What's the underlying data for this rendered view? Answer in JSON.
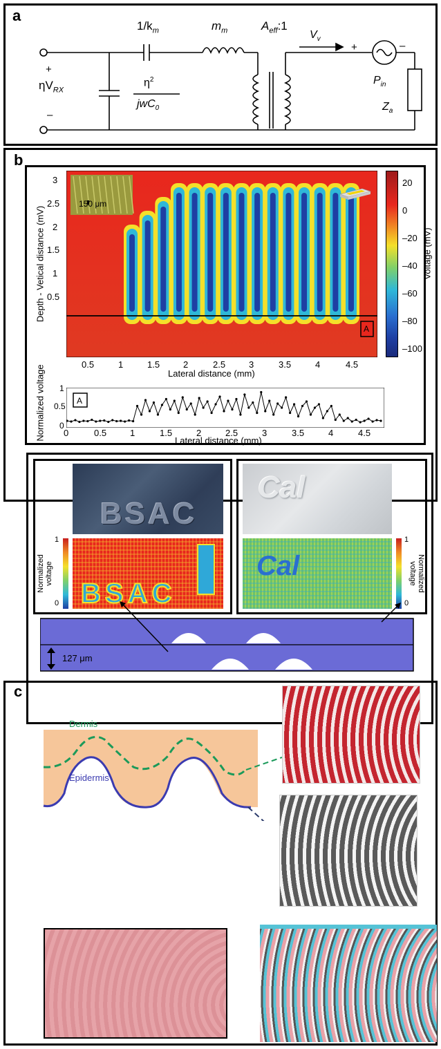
{
  "panel_a": {
    "label": "a",
    "capacitor_label": "1/k",
    "capacitor_sub": "m",
    "inductor_label": "m",
    "inductor_sub": "m",
    "transformer_label": "A",
    "transformer_sub": "eff",
    "transformer_ratio": ":1",
    "source_left": "ηV",
    "source_left_sub": "RX",
    "plus_left": "+",
    "minus_left": "–",
    "shunt_num": "η",
    "shunt_exp": "2",
    "shunt_den": "jwC",
    "shunt_den_sub": "0",
    "vv_label": "V",
    "vv_sub": "v",
    "plus_right": "+",
    "minus_right": "–",
    "pin_label": "P",
    "pin_sub": "in",
    "za_label": "Z",
    "za_sub": "a"
  },
  "panel_b": {
    "label": "b",
    "heatmap": {
      "ylabel": "Depth - Vetical distance (mV)",
      "xlabel": "Lateral distance (mm)",
      "yticks": [
        "3",
        "2.5",
        "2",
        "1.5",
        "1",
        "0.5"
      ],
      "xticks": [
        "0.5",
        "1",
        "1.5",
        "2",
        "2.5",
        "3",
        "3.5",
        "4",
        "4.5"
      ],
      "scalebar": "150 μm",
      "marker": "A",
      "colorbar_label": "Voltage (mV)",
      "colorbar_ticks": [
        "20",
        "0",
        "–20",
        "–40",
        "–60",
        "–80",
        "–100"
      ]
    },
    "lineplot": {
      "ylabel": "Normalized voltage",
      "xlabel": "Lateral distance (mm)",
      "yticks": [
        "1",
        "0.5",
        "0"
      ],
      "xticks": [
        "0",
        "0.5",
        "1",
        "1.5",
        "2",
        "2.5",
        "3",
        "3.5",
        "4",
        "4.5"
      ],
      "marker": "A"
    },
    "sub_left": {
      "photo_text": "BSAC",
      "cb_label": "Normalized voltage",
      "cb_top": "1",
      "cb_bottom": "0"
    },
    "sub_right": {
      "photo_text": "Cal",
      "cb_label": "Normalized voltage",
      "cb_top": "1",
      "cb_bottom": "0"
    },
    "cross_section_label": "127 μm"
  },
  "panel_c": {
    "label": "c",
    "dermis_label": "Dermis",
    "epidermis_label": "Epidermis"
  },
  "colors": {
    "heat_red": "#e8271d",
    "heat_blue": "#1e3fa3",
    "heat_yellow": "#f4e02a",
    "skin": "#f6c69a",
    "dermis_green": "#1b9a5a",
    "epidermis_blue": "#3b3bb0",
    "cross_section_blue": "#6b6bd6",
    "fingerprint_red": "#c4252f",
    "fingerprint_gray": "#555555",
    "fingerprint_pink": "#e9a2a8",
    "fingerprint_cyan": "#56c3d6"
  },
  "chart_data": {
    "type": "line",
    "xlabel": "Lateral distance (mm)",
    "ylabel": "Normalized voltage",
    "xlim": [
      0,
      4.6
    ],
    "ylim": [
      0,
      1
    ],
    "x": [
      0.0,
      0.06,
      0.12,
      0.18,
      0.24,
      0.3,
      0.36,
      0.42,
      0.48,
      0.54,
      0.6,
      0.66,
      0.72,
      0.78,
      0.84,
      0.9,
      0.96,
      1.02,
      1.08,
      1.14,
      1.2,
      1.26,
      1.32,
      1.38,
      1.44,
      1.5,
      1.56,
      1.62,
      1.68,
      1.74,
      1.8,
      1.86,
      1.92,
      1.98,
      2.04,
      2.1,
      2.16,
      2.22,
      2.28,
      2.34,
      2.4,
      2.46,
      2.52,
      2.58,
      2.64,
      2.7,
      2.76,
      2.82,
      2.88,
      2.94,
      3.0,
      3.06,
      3.12,
      3.18,
      3.24,
      3.3,
      3.36,
      3.42,
      3.48,
      3.54,
      3.6,
      3.66,
      3.72,
      3.78,
      3.84,
      3.9,
      3.96,
      4.02,
      4.08,
      4.14,
      4.2,
      4.26,
      4.32,
      4.38,
      4.44,
      4.5,
      4.56
    ],
    "y": [
      0.12,
      0.1,
      0.14,
      0.09,
      0.12,
      0.11,
      0.15,
      0.1,
      0.12,
      0.13,
      0.09,
      0.14,
      0.11,
      0.12,
      0.1,
      0.13,
      0.11,
      0.55,
      0.3,
      0.72,
      0.4,
      0.65,
      0.3,
      0.58,
      0.75,
      0.45,
      0.7,
      0.35,
      0.8,
      0.45,
      0.62,
      0.3,
      0.78,
      0.5,
      0.68,
      0.35,
      0.6,
      0.82,
      0.4,
      0.7,
      0.45,
      0.75,
      0.3,
      0.88,
      0.5,
      0.65,
      0.35,
      0.95,
      0.4,
      0.7,
      0.3,
      0.62,
      0.5,
      0.8,
      0.35,
      0.6,
      0.25,
      0.55,
      0.68,
      0.3,
      0.5,
      0.6,
      0.2,
      0.4,
      0.55,
      0.15,
      0.3,
      0.12,
      0.2,
      0.1,
      0.15,
      0.08,
      0.12,
      0.18,
      0.1,
      0.14,
      0.12
    ]
  }
}
